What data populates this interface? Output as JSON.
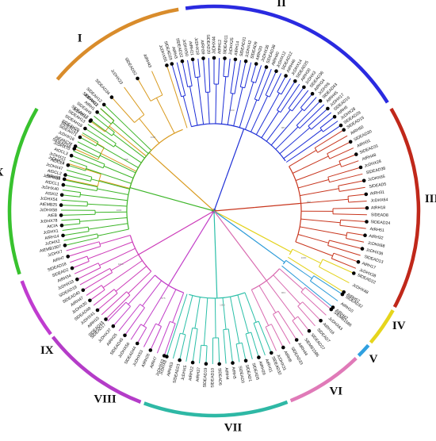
{
  "figure": {
    "type": "circular phylogenetic tree",
    "background": "#ffffff",
    "center_marker_color": "#888888"
  },
  "clades": [
    {
      "id": "I",
      "label": "I",
      "color": "#D99A1E",
      "ring_color": "#D98C2B",
      "leaves": [
        "AtRH38",
        "JcDHX11",
        "SlDEAD16",
        "SlDEAD13",
        "JcDHX10",
        "JcDHX22",
        "SlDEAD34",
        "JcDHX23",
        "SlDEAD52",
        "AtRH43",
        "JcDHX55"
      ]
    },
    {
      "id": "II",
      "label": "II",
      "color": "#1E2FD6",
      "ring_color": "#2A2AE0",
      "leaves": [
        "SlDEAD29",
        "AtRH3",
        "SlDEAD22",
        "JcDHX50",
        "AtRH21",
        "JcDHX18",
        "AtRH39",
        "SlDEAD20",
        "JcDHX44",
        "AtRH12",
        "SlDEAD11",
        "JcDHX25",
        "AtRH14",
        "SlDEAD31",
        "JcDHX42",
        "SlDEAD9",
        "AtRH20",
        "JcDHX36",
        "SlDEAD38",
        "AtRH40",
        "JcDHX12",
        "SlDEAD12",
        "AtRH46",
        "JcDHX14",
        "SlDEAD25",
        "AtRH30",
        "JcDHX3",
        "SlDEAD36",
        "AtRH24",
        "JcDHX6",
        "SlDEAD43",
        "AtRH45",
        "JcDHX17",
        "SlDEAD10",
        "AtRH5",
        "JcDHX28",
        "SlDEAD29"
      ]
    },
    {
      "id": "III",
      "label": "III",
      "color": "#C8361E",
      "ring_color": "#C0281A",
      "leaves": [
        "SlDEAD15",
        "AtRH50",
        "SlDEAD30",
        "AtRH31",
        "SlDEAD31",
        "AtRH48",
        "JcDHX28",
        "SlDEAD38",
        "JcDHX65",
        "SlDEAD5",
        "AtRH31",
        "JcDHX64",
        "AtRH18",
        "SlDEAD8",
        "SlDEAD24",
        "AtRH51",
        "AtRH32",
        "JcDHX68",
        "JcDHX36",
        "SlDEAD13",
        "AtRH17",
        "JcDHX38"
      ]
    },
    {
      "id": "IV",
      "label": "IV",
      "color": "#E3D21A",
      "ring_color": "#E6D51C",
      "leaves": [
        "SlDEAD22",
        "JcDHX48",
        "AtRH57"
      ]
    },
    {
      "id": "V",
      "label": "V",
      "color": "#2A9AD8",
      "ring_color": "#2FA0E0",
      "leaves": [
        "SlDEAD32",
        "AtRH10",
        "AtRH42"
      ]
    },
    {
      "id": "VI",
      "label": "VI",
      "color": "#D96BB0",
      "ring_color": "#E07AB8",
      "leaves": [
        "SlEMB1586",
        "JcDHX63",
        "AtRH16",
        "SlDEAD7",
        "SlDEAD27",
        "SlEMB1586",
        "AtRH44",
        "SlDEAD33",
        "AtRH8",
        "JcDHX31"
      ]
    },
    {
      "id": "VII",
      "label": "VII",
      "color": "#2BBFA8",
      "ring_color": "#2EB8A5",
      "leaves": [
        "SlDEAD32",
        "AtRH11",
        "AtRH29",
        "SlDEAD5",
        "SlDEAD1",
        "SlDEAD3",
        "AtRH5",
        "AtRH4",
        "SlDEAD6",
        "SlDEAD10",
        "SlDEAD19",
        "AtRH37",
        "AtRH22",
        "JcDHX5",
        "SlDEAD23",
        "AtRH53",
        "JcDHX8"
      ]
    },
    {
      "id": "VIII",
      "label": "VIII",
      "color": "#C23EC8",
      "ring_color": "#B43CC8",
      "leaves": [
        "JcDHX43",
        "AtRH7",
        "AtRH26",
        "JcDHX53",
        "SlDEAD44",
        "JcDHX56",
        "SlDEAD45",
        "AtRH25",
        "JcDHX37",
        "SlDEAD17"
      ]
    },
    {
      "id": "IX",
      "label": "IX",
      "color": "#CC3AB8",
      "ring_color": "#C03CD0",
      "leaves": [
        "SlDEAD43",
        "AtRH15",
        "JcDHX41",
        "SlDEAD49",
        "JcDHX30",
        "AtRH47",
        "SlDEAD40",
        "SlDEAD19",
        "JcDHX33",
        "AtRH34",
        "SlDEAD2",
        "SlDEAD18",
        "AtRH7",
        "JcDHX7"
      ]
    },
    {
      "id": "X",
      "label": "X",
      "color": "#3CB528",
      "ring_color": "#38C22E",
      "leaves": [
        "AtEMB1507",
        "JcDHX2",
        "AtRH14",
        "JcDHX1",
        "AtCIA",
        "JcDHX78",
        "AtEB",
        "JcDHX58",
        "AtEMB25",
        "JcDHX54",
        "AtSKI2",
        "JcDHX40",
        "AtDCL1",
        "JcDHX59",
        "AtDCL2",
        "JcDHX47",
        "AtDCL4",
        "JcDHX21",
        "AtDCL3",
        "JcDHX70",
        "AtFANCM",
        "JcDHX16",
        "SlDEAH71",
        "SlDEAH20",
        "SlDEAH18",
        "SlDEAH13",
        "SlDEAH17",
        "SlDEAH9",
        "AtRH1",
        "SlDEAH11",
        "SlDEAH12"
      ]
    }
  ],
  "bootstrap_examples": [
    "1000",
    "1000",
    "987",
    "990",
    "1000",
    "963",
    "1000",
    "875",
    "1000",
    "1000",
    "998"
  ]
}
